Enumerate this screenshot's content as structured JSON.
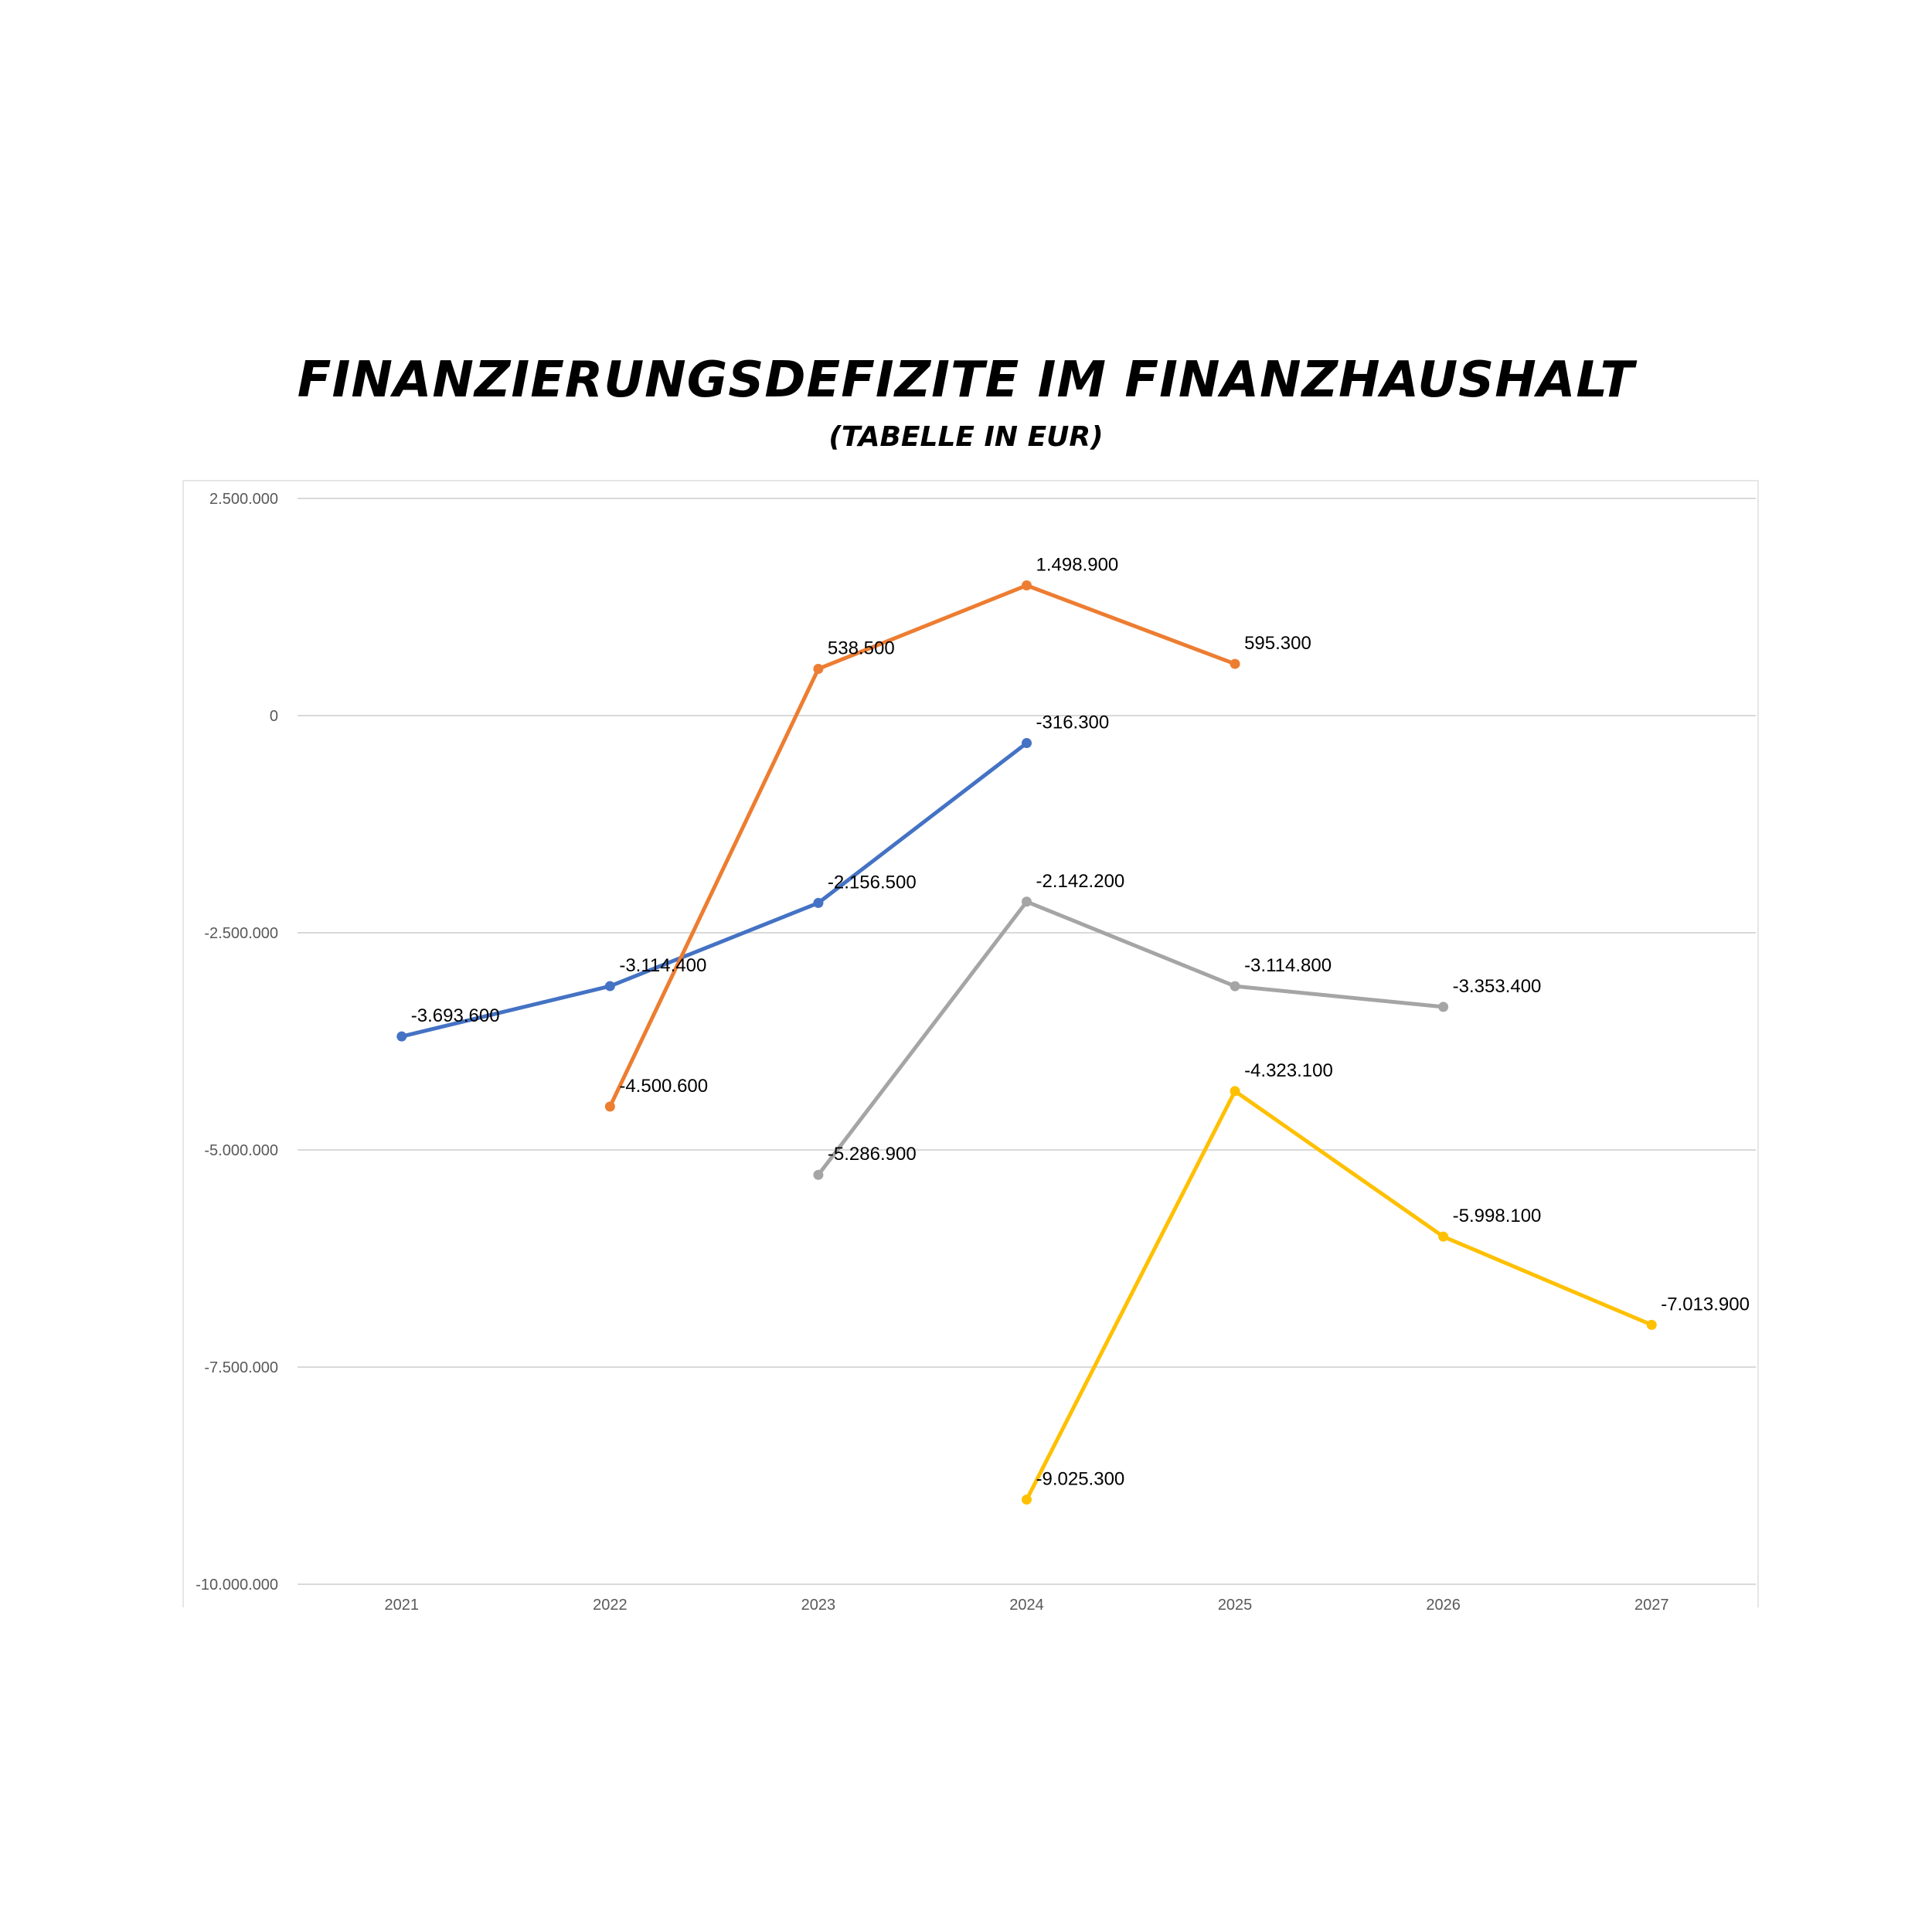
{
  "chart_data": {
    "type": "line",
    "title": "Finanzierungsdefizite im Finanzhaushalt",
    "subtitle": "(Tabelle in EUR)",
    "xlabel": "",
    "ylabel": "",
    "categories": [
      "2021",
      "2022",
      "2023",
      "2024",
      "2025",
      "2026",
      "2027"
    ],
    "ylim": [
      -10000000,
      2500000
    ],
    "yticks": [
      2500000,
      0,
      -2500000,
      -5000000,
      -7500000,
      -10000000
    ],
    "ytick_labels": [
      "2.500.000",
      "0",
      "-2.500.000",
      "-5.000.000",
      "-7.500.000",
      "-10.000.000"
    ],
    "grid": true,
    "legend": "none",
    "series": [
      {
        "color": "#4472C4",
        "values": [
          -3693600,
          -3114400,
          -2156500,
          -316300,
          null,
          null,
          null
        ],
        "labels": [
          "-3.693.600",
          "-3.114.400",
          "-2.156.500",
          "-316.300",
          null,
          null,
          null
        ]
      },
      {
        "color": "#ED7D31",
        "values": [
          null,
          -4500600,
          538500,
          1498900,
          595300,
          null,
          null
        ],
        "labels": [
          null,
          "-4.500.600",
          "538.500",
          "1.498.900",
          "595.300",
          null,
          null
        ]
      },
      {
        "color": "#A5A5A5",
        "values": [
          null,
          null,
          -5286900,
          -2142200,
          -3114800,
          -3353400,
          null
        ],
        "labels": [
          null,
          null,
          "-5.286.900",
          "-2.142.200",
          "-3.114.800",
          "-3.353.400",
          null
        ]
      },
      {
        "color": "#FFC000",
        "values": [
          null,
          null,
          null,
          -9025300,
          -4323100,
          -5998100,
          -7013900
        ],
        "labels": [
          null,
          null,
          null,
          "-9.025.300",
          "-4.323.100",
          "-5.998.100",
          "-7.013.900"
        ]
      }
    ]
  }
}
